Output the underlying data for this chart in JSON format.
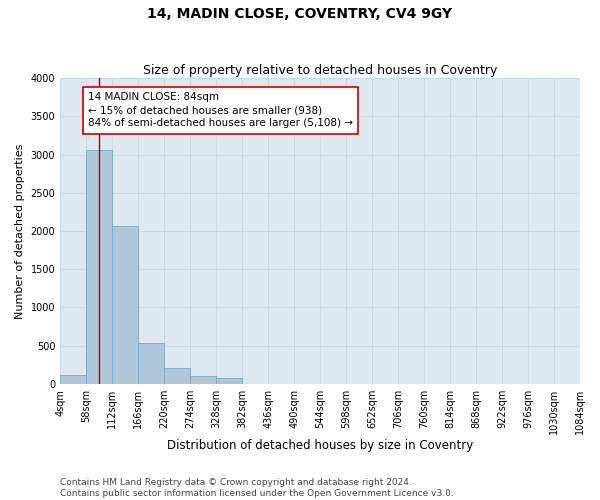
{
  "title": "14, MADIN CLOSE, COVENTRY, CV4 9GY",
  "subtitle": "Size of property relative to detached houses in Coventry",
  "xlabel": "Distribution of detached houses by size in Coventry",
  "ylabel": "Number of detached properties",
  "bin_edges": [
    4,
    58,
    112,
    166,
    220,
    274,
    328,
    382,
    436,
    490,
    544,
    598,
    652,
    706,
    760,
    814,
    868,
    922,
    976,
    1030,
    1084
  ],
  "bar_heights": [
    120,
    3060,
    2060,
    530,
    210,
    100,
    80,
    0,
    0,
    0,
    0,
    0,
    0,
    0,
    0,
    0,
    0,
    0,
    0,
    0
  ],
  "bar_color": "#aec6d8",
  "bar_edgecolor": "#7aa8c8",
  "vline_x": 84,
  "vline_color": "#aa0000",
  "annotation_text": "14 MADIN CLOSE: 84sqm\n← 15% of detached houses are smaller (938)\n84% of semi-detached houses are larger (5,108) →",
  "annotation_box_edgecolor": "#cc0000",
  "annotation_box_facecolor": "#ffffff",
  "ylim": [
    0,
    4000
  ],
  "yticks": [
    0,
    500,
    1000,
    1500,
    2000,
    2500,
    3000,
    3500,
    4000
  ],
  "grid_color": "#c8d4e4",
  "background_color": "#dde8f0",
  "footnote": "Contains HM Land Registry data © Crown copyright and database right 2024.\nContains public sector information licensed under the Open Government Licence v3.0.",
  "title_fontsize": 10,
  "subtitle_fontsize": 9,
  "xlabel_fontsize": 8.5,
  "ylabel_fontsize": 8,
  "tick_fontsize": 7,
  "annotation_fontsize": 7.5,
  "footnote_fontsize": 6.5
}
